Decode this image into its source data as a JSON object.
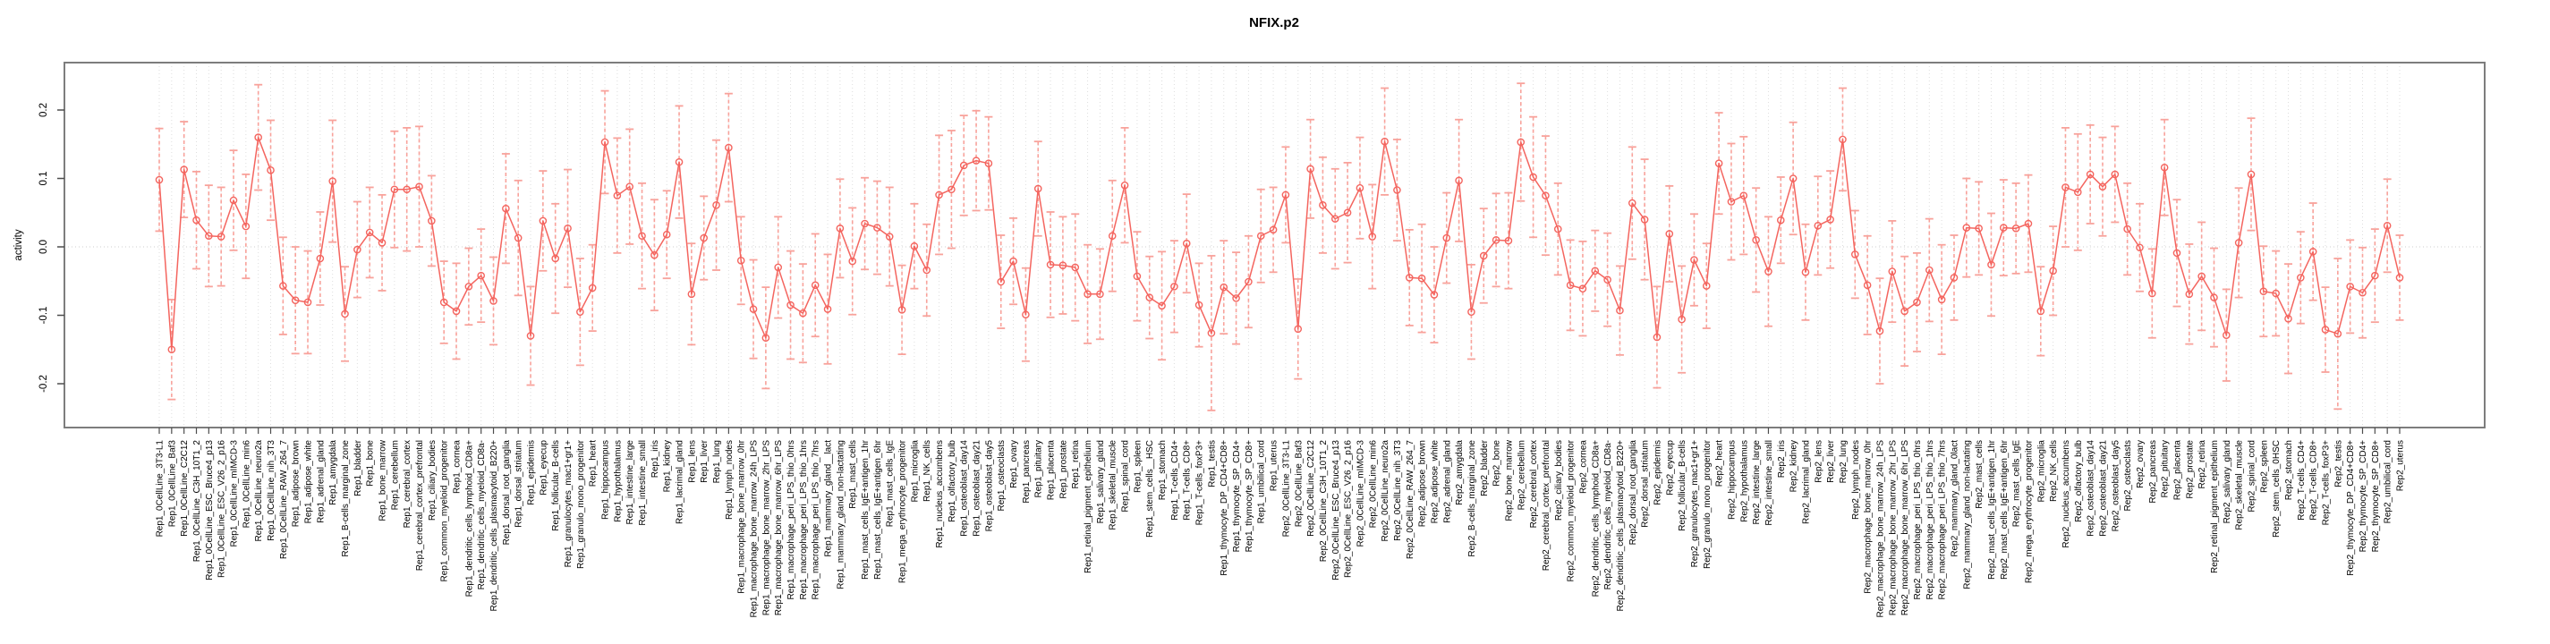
{
  "title": "NFIX.p2",
  "y_axis": {
    "label": "activity",
    "tick_labels": [
      "0.2",
      "0.1",
      "0.0",
      "-0.1",
      "-0.2"
    ],
    "tick_values": [
      0.2,
      0.1,
      0.0,
      -0.1,
      -0.2
    ]
  },
  "colors": {
    "series": "#f4655f",
    "error_bar": "#f8a29b",
    "grid": "#dedede",
    "zero_line": "#cfcfcf",
    "frame": "#7d7d7d",
    "tick": "#4d4d4d",
    "text": "#000000",
    "background": "#ffffff"
  },
  "chart_data": {
    "type": "line",
    "title": "NFIX.p2",
    "xlabel": "",
    "ylabel": "activity",
    "ylim": [
      -0.26,
      0.27
    ],
    "grid": "vertical dotted gridline per category; dotted horizontal line at 0 only",
    "legend": "none",
    "error_bars": true,
    "marker": "open-circle",
    "categories": [
      "Rep1_0CellLine_3T3-L1",
      "Rep1_0CellLine_Baf3",
      "Rep1_0CellLine_C2C12",
      "Rep1_0CellLine_C3H_10T1_2",
      "Rep1_0CellLine_ESC_Bruce4_p13",
      "Rep1_0CellLine_ESC_V26_2_p16",
      "Rep1_0CellLine_mIMCD-3",
      "Rep1_0CellLine_min6",
      "Rep1_0CellLine_neuro2a",
      "Rep1_0CellLine_nih_3T3",
      "Rep1_0CellLine_RAW_264_7",
      "Rep1_adipose_brown",
      "Rep1_adipose_white",
      "Rep1_adrenal_gland",
      "Rep1_amygdala",
      "Rep1_B-cells_marginal_zone",
      "Rep1_bladder",
      "Rep1_bone",
      "Rep1_bone_marrow",
      "Rep1_cerebellum",
      "Rep1_cerebral_cortex",
      "Rep1_cerebral_cortex_prefrontal",
      "Rep1_ciliary_bodies",
      "Rep1_common_myeloid_progenitor",
      "Rep1_cornea",
      "Rep1_dendritic_cells_lymphoid_CD8a+",
      "Rep1_dendritic_cells_myeloid_CD8a-",
      "Rep1_dendritic_cells_plasmacytoid_B220+",
      "Rep1_dorsal_root_ganglia",
      "Rep1_dorsal_striatum",
      "Rep1_epidermis",
      "Rep1_eyecup",
      "Rep1_follicular_B-cells",
      "Rep1_granulocytes_mac1+gr1+",
      "Rep1_granulo_mono_progenitor",
      "Rep1_heart",
      "Rep1_hippocampus",
      "Rep1_hypothalamus",
      "Rep1_intestine_large",
      "Rep1_intestine_small",
      "Rep1_iris",
      "Rep1_kidney",
      "Rep1_lacrimal_gland",
      "Rep1_lens",
      "Rep1_liver",
      "Rep1_lung",
      "Rep1_lymph_nodes",
      "Rep1_macrophage_bone_marrow_0hr",
      "Rep1_macrophage_bone_marrow_24h_LPS",
      "Rep1_macrophage_bone_marrow_2hr_LPS",
      "Rep1_macrophage_bone_marrow_6hr_LPS",
      "Rep1_macrophage_peri_LPS_thio_0hrs",
      "Rep1_macrophage_peri_LPS_thio_1hrs",
      "Rep1_macrophage_peri_LPS_thio_7hrs",
      "Rep1_mammary_gland__lact",
      "Rep1_mammary_gland_non-lactating",
      "Rep1_mast_cells",
      "Rep1_mast_cells_IgE+antigen_1hr",
      "Rep1_mast_cells_IgE+antigen_6hr",
      "Rep1_mast_cells_IgE",
      "Rep1_mega_erythrocyte_progenitor",
      "Rep1_microglia",
      "Rep1_NK_cells",
      "Rep1_nucleus_accumbens",
      "Rep1_olfactory_bulb",
      "Rep1_osteoblast_day14",
      "Rep1_osteoblast_day21",
      "Rep1_osteoblast_day5",
      "Rep1_osteoclasts",
      "Rep1_ovary",
      "Rep1_pancreas",
      "Rep1_pituitary",
      "Rep1_placenta",
      "Rep1_prostate",
      "Rep1_retina",
      "Rep1_retinal_pigment_epithelium",
      "Rep1_salivary_gland",
      "Rep1_skeletal_muscle",
      "Rep1_spinal_cord",
      "Rep1_spleen",
      "Rep1_stem_cells__HSC",
      "Rep1_stomach",
      "Rep1_T-cells_CD4+",
      "Rep1_T-cells_CD8+",
      "Rep1_T-cells_foxP3+",
      "Rep1_testis",
      "Rep1_thymocyte_DP_CD4+CD8+",
      "Rep1_thymocyte_SP_CD4+",
      "Rep1_thymocyte_SP_CD8+",
      "Rep1_umbilical_cord",
      "Rep1_uterus",
      "Rep2_0CellLine_3T3-L1",
      "Rep2_0CellLine_Baf3",
      "Rep2_0CellLine_C2C12",
      "Rep2_0CellLine_C3H_10T1_2",
      "Rep2_0CellLine_ESC_Bruce4_p13",
      "Rep2_0CellLine_ESC_V26_2_p16",
      "Rep2_0CellLine_mIMCD-3",
      "Rep2_0CellLine_min6",
      "Rep2_0CellLine_neuro2a",
      "Rep2_0CellLine_nih_3T3",
      "Rep2_0CellLine_RAW_264_7",
      "Rep2_adipose_brown",
      "Rep2_adipose_white",
      "Rep2_adrenal_gland",
      "Rep2_amygdala",
      "Rep2_B-cells_marginal_zone",
      "Rep2_bladder",
      "Rep2_bone",
      "Rep2_bone_marrow",
      "Rep2_cerebellum",
      "Rep2_cerebral_cortex",
      "Rep2_cerebral_cortex_prefrontal",
      "Rep2_ciliary_bodies",
      "Rep2_common_myeloid_progenitor",
      "Rep2_cornea",
      "Rep2_dendritic_cells_lymphoid_CD8a+",
      "Rep2_dendritic_cells_myeloid_CD8a-",
      "Rep2_dendritic_cells_plasmacytoid_B220+",
      "Rep2_dorsal_root_ganglia",
      "Rep2_dorsal_striatum",
      "Rep2_epidermis",
      "Rep2_eyecup",
      "Rep2_follicular_B-cells",
      "Rep2_granulocytes_mac1+gr1+",
      "Rep2_granulo_mono_progenitor",
      "Rep2_heart",
      "Rep2_hippocampus",
      "Rep2_hypothalamus",
      "Rep2_intestine_large",
      "Rep2_intestine_small",
      "Rep2_iris",
      "Rep2_kidney",
      "Rep2_lacrimal_gland",
      "Rep2_lens",
      "Rep2_liver",
      "Rep2_lung",
      "Rep2_lymph_nodes",
      "Rep2_macrophage_bone_marrow_0hr",
      "Rep2_macrophage_bone_marrow_24h_LPS",
      "Rep2_macrophage_bone_marrow_2hr_LPS",
      "Rep2_macrophage_bone_marrow_6hr_LPS",
      "Rep2_macrophage_peri_LPS_thio_0hrs",
      "Rep2_macrophage_peri_LPS_thio_1hrs",
      "Rep2_macrophage_peri_LPS_thio_7hrs",
      "Rep2_mammary_gland_0lact",
      "Rep2_mammary_gland_non-lactating",
      "Rep2_mast_cells",
      "Rep2_mast_cells_IgE+antigen_1hr",
      "Rep2_mast_cells_IgE+antigen_6hr",
      "Rep2_mast_cells_IgE",
      "Rep2_mega_erythrocyte_progenitor",
      "Rep2_microglia",
      "Rep2_NK_cells",
      "Rep2_nucleus_accumbens",
      "Rep2_olfactory_bulb",
      "Rep2_osteoblast_day14",
      "Rep2_osteoblast_day21",
      "Rep2_osteoblast_day5",
      "Rep2_osteoclasts",
      "Rep2_ovary",
      "Rep2_pancreas",
      "Rep2_pituitary",
      "Rep2_placenta",
      "Rep2_prostate",
      "Rep2_retina",
      "Rep2_retinal_pigment_epithelium",
      "Rep2_salivary_gland",
      "Rep2_skeletal_muscle",
      "Rep2_spinal_cord",
      "Rep2_spleen",
      "Rep2_stem_cells_0HSC",
      "Rep2_stomach",
      "Rep2_T-cells_CD4+",
      "Rep2_T-cells_CD8+",
      "Rep2_T-cells_foxP3+",
      "Rep2_testis",
      "Rep2_thymocyte_DP_CD4+CD8+",
      "Rep2_thymocyte_SP_CD4+",
      "Rep2_thymocyte_SP_CD8+",
      "Rep2_umbilical_cord",
      "Rep2_uterus"
    ],
    "values": [
      0.098,
      -0.15,
      0.113,
      0.039,
      0.016,
      0.015,
      0.068,
      0.03,
      0.16,
      0.112,
      -0.057,
      -0.078,
      -0.081,
      -0.017,
      0.096,
      -0.098,
      -0.004,
      0.021,
      0.006,
      0.084,
      0.084,
      0.088,
      0.038,
      -0.081,
      -0.094,
      -0.058,
      -0.042,
      -0.079,
      0.056,
      0.013,
      -0.13,
      0.038,
      -0.017,
      0.027,
      -0.095,
      -0.06,
      0.153,
      0.075,
      0.088,
      0.016,
      -0.012,
      0.018,
      0.124,
      -0.069,
      0.013,
      0.061,
      0.145,
      -0.02,
      -0.091,
      -0.133,
      -0.03,
      -0.085,
      -0.097,
      -0.056,
      -0.091,
      0.027,
      -0.021,
      0.034,
      0.028,
      0.015,
      -0.092,
      0.001,
      -0.034,
      0.076,
      0.084,
      0.119,
      0.126,
      0.122,
      -0.051,
      -0.021,
      -0.099,
      0.085,
      -0.026,
      -0.027,
      -0.03,
      -0.069,
      -0.069,
      0.016,
      0.09,
      -0.043,
      -0.074,
      -0.086,
      -0.058,
      0.005,
      -0.085,
      -0.126,
      -0.059,
      -0.075,
      -0.051,
      0.016,
      0.025,
      0.076,
      -0.12,
      0.114,
      0.061,
      0.041,
      0.05,
      0.086,
      0.015,
      0.154,
      0.083,
      -0.045,
      -0.046,
      -0.07,
      0.013,
      0.097,
      -0.095,
      -0.013,
      0.01,
      0.009,
      0.153,
      0.102,
      0.075,
      0.026,
      -0.056,
      -0.061,
      -0.035,
      -0.048,
      -0.093,
      0.064,
      0.04,
      -0.132,
      0.019,
      -0.106,
      -0.019,
      -0.057,
      0.122,
      0.066,
      0.075,
      0.01,
      -0.036,
      0.039,
      0.1,
      -0.037,
      0.031,
      0.04,
      0.157,
      -0.011,
      -0.056,
      -0.123,
      -0.036,
      -0.094,
      -0.081,
      -0.034,
      -0.077,
      -0.045,
      0.028,
      0.027,
      -0.026,
      0.028,
      0.027,
      0.034,
      -0.094,
      -0.035,
      0.087,
      0.08,
      0.106,
      0.088,
      0.106,
      0.026,
      -0.001,
      -0.068,
      0.116,
      -0.009,
      -0.069,
      -0.043,
      -0.074,
      -0.129,
      0.006,
      0.106,
      -0.065,
      -0.068,
      -0.105,
      -0.045,
      -0.007,
      -0.121,
      -0.127,
      -0.058,
      -0.067,
      -0.042,
      0.031,
      -0.045
    ],
    "errors": [
      0.075,
      0.073,
      0.07,
      0.071,
      0.074,
      0.072,
      0.073,
      0.076,
      0.077,
      0.073,
      0.071,
      0.078,
      0.075,
      0.068,
      0.089,
      0.069,
      0.07,
      0.066,
      0.07,
      0.085,
      0.09,
      0.088,
      0.066,
      0.06,
      0.07,
      0.056,
      0.068,
      0.064,
      0.08,
      0.084,
      0.072,
      0.073,
      0.08,
      0.086,
      0.078,
      0.063,
      0.075,
      0.084,
      0.084,
      0.077,
      0.081,
      0.064,
      0.082,
      0.074,
      0.061,
      0.095,
      0.079,
      0.064,
      0.072,
      0.074,
      0.074,
      0.079,
      0.072,
      0.075,
      0.08,
      0.072,
      0.078,
      0.067,
      0.068,
      0.072,
      0.065,
      0.062,
      0.067,
      0.087,
      0.086,
      0.073,
      0.073,
      0.068,
      0.068,
      0.063,
      0.068,
      0.069,
      0.077,
      0.071,
      0.078,
      0.072,
      0.066,
      0.081,
      0.084,
      0.065,
      0.06,
      0.079,
      0.067,
      0.072,
      0.061,
      0.113,
      0.068,
      0.067,
      0.067,
      0.068,
      0.062,
      0.07,
      0.073,
      0.072,
      0.07,
      0.073,
      0.073,
      0.074,
      0.076,
      0.078,
      0.074,
      0.07,
      0.079,
      0.07,
      0.066,
      0.089,
      0.069,
      0.069,
      0.068,
      0.07,
      0.086,
      0.088,
      0.087,
      0.067,
      0.066,
      0.069,
      0.059,
      0.068,
      0.065,
      0.082,
      0.088,
      0.074,
      0.07,
      0.078,
      0.067,
      0.062,
      0.074,
      0.085,
      0.086,
      0.076,
      0.08,
      0.063,
      0.082,
      0.07,
      0.072,
      0.071,
      0.075,
      0.064,
      0.072,
      0.077,
      0.074,
      0.08,
      0.072,
      0.075,
      0.08,
      0.062,
      0.072,
      0.068,
      0.075,
      0.07,
      0.066,
      0.071,
      0.065,
      0.065,
      0.087,
      0.085,
      0.072,
      0.072,
      0.07,
      0.067,
      0.064,
      0.065,
      0.07,
      0.078,
      0.073,
      0.079,
      0.072,
      0.067,
      0.08,
      0.082,
      0.066,
      0.062,
      0.08,
      0.067,
      0.071,
      0.062,
      0.11,
      0.068,
      0.066,
      0.068,
      0.068,
      0.062
    ]
  }
}
